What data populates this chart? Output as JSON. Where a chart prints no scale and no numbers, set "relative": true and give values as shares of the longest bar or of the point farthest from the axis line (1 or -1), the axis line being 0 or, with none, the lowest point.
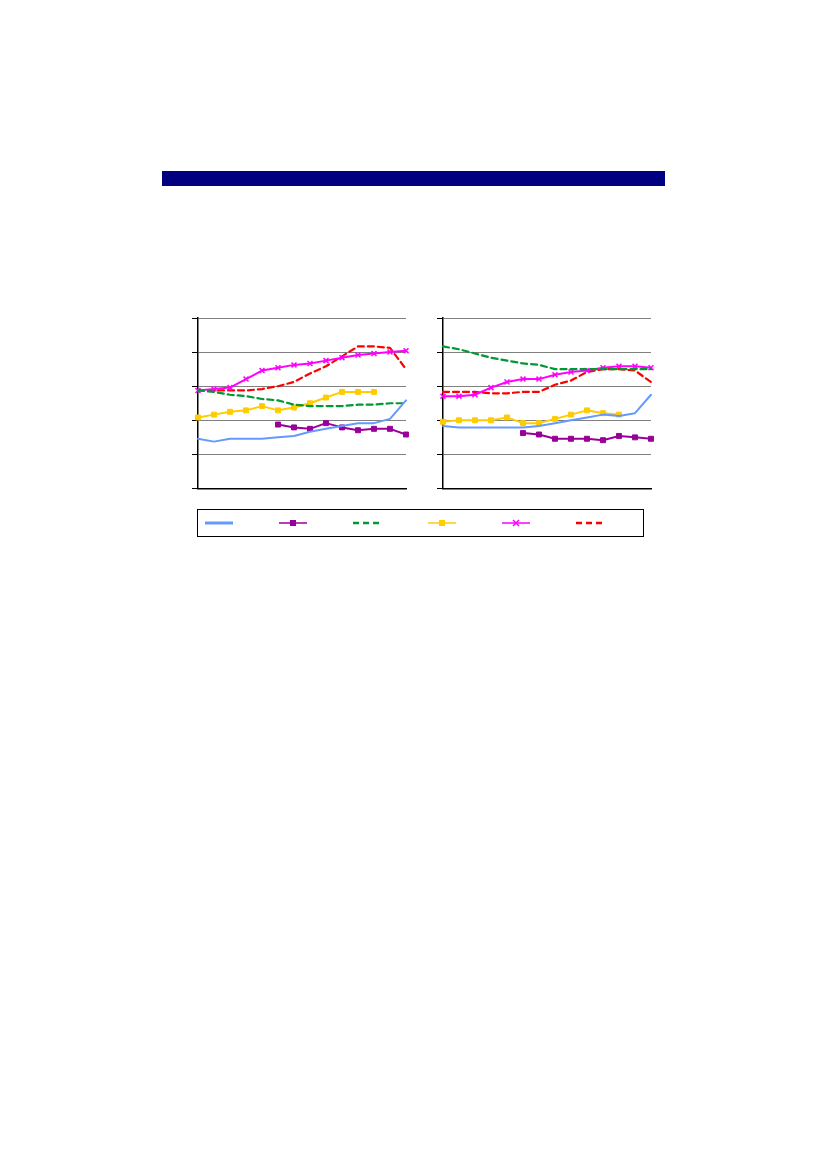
{
  "chart_data": [
    {
      "type": "line",
      "relative": true,
      "categories": [
        null,
        null,
        null,
        null,
        null,
        null,
        null,
        null,
        null,
        null,
        null,
        null,
        null,
        null
      ],
      "grid": "y",
      "tick_labels": false,
      "series": [
        {
          "color": "#6699ff",
          "marker": "none",
          "line_style": "solid",
          "values": [
            0.35,
            0.33,
            0.35,
            0.35,
            0.35,
            0.36,
            0.37,
            0.4,
            0.42,
            0.44,
            0.46,
            0.46,
            0.49,
            0.62
          ]
        },
        {
          "color": "#990099",
          "marker": "square",
          "line_style": "solid",
          "values": [
            null,
            null,
            null,
            null,
            null,
            0.45,
            0.43,
            0.42,
            0.46,
            0.43,
            0.41,
            0.42,
            0.42,
            0.38
          ]
        },
        {
          "color": "#009933",
          "marker": "none",
          "line_style": "dashed",
          "values": [
            0.69,
            0.68,
            0.66,
            0.65,
            0.63,
            0.62,
            0.59,
            0.58,
            0.58,
            0.58,
            0.59,
            0.59,
            0.6,
            0.6
          ]
        },
        {
          "color": "#ffcc00",
          "marker": "square",
          "line_style": "solid",
          "values": [
            0.5,
            0.52,
            0.54,
            0.55,
            0.58,
            0.55,
            0.57,
            0.6,
            0.64,
            0.68,
            0.68,
            0.68,
            null,
            null
          ]
        },
        {
          "color": "#ff00ff",
          "marker": "cross",
          "line_style": "solid",
          "values": [
            0.69,
            0.7,
            0.71,
            0.77,
            0.83,
            0.85,
            0.87,
            0.88,
            0.9,
            0.92,
            0.94,
            0.95,
            0.96,
            0.97
          ]
        },
        {
          "color": "#ff0000",
          "marker": "none",
          "line_style": "dashed",
          "values": [
            0.69,
            0.69,
            0.69,
            0.69,
            0.7,
            0.72,
            0.75,
            0.81,
            0.86,
            0.93,
            1.0,
            1.0,
            0.99,
            0.84
          ]
        }
      ]
    },
    {
      "type": "line",
      "relative": true,
      "categories": [
        null,
        null,
        null,
        null,
        null,
        null,
        null,
        null,
        null,
        null,
        null,
        null,
        null,
        null
      ],
      "grid": "y",
      "tick_labels": false,
      "series": [
        {
          "color": "#6699ff",
          "marker": "none",
          "line_style": "solid",
          "values": [
            0.44,
            0.43,
            0.43,
            0.43,
            0.43,
            0.43,
            0.44,
            0.46,
            0.48,
            0.5,
            0.52,
            0.51,
            0.53,
            0.66
          ]
        },
        {
          "color": "#990099",
          "marker": "square",
          "line_style": "solid",
          "values": [
            null,
            null,
            null,
            null,
            null,
            0.39,
            0.38,
            0.35,
            0.35,
            0.35,
            0.34,
            0.37,
            0.36,
            0.35
          ]
        },
        {
          "color": "#009933",
          "marker": "none",
          "line_style": "dashed",
          "values": [
            1.0,
            0.98,
            0.95,
            0.92,
            0.9,
            0.88,
            0.87,
            0.84,
            0.84,
            0.84,
            0.84,
            0.84,
            0.84,
            0.84
          ]
        },
        {
          "color": "#ffcc00",
          "marker": "square",
          "line_style": "solid",
          "values": [
            0.47,
            0.48,
            0.48,
            0.48,
            0.5,
            0.46,
            0.46,
            0.49,
            0.52,
            0.55,
            0.53,
            0.52,
            null,
            null
          ]
        },
        {
          "color": "#ff00ff",
          "marker": "cross",
          "line_style": "solid",
          "values": [
            0.65,
            0.65,
            0.66,
            0.71,
            0.75,
            0.77,
            0.77,
            0.8,
            0.82,
            0.83,
            0.85,
            0.86,
            0.86,
            0.85
          ]
        },
        {
          "color": "#ff0000",
          "marker": "none",
          "line_style": "dashed",
          "values": [
            0.68,
            0.68,
            0.68,
            0.67,
            0.67,
            0.68,
            0.68,
            0.73,
            0.76,
            0.82,
            0.84,
            0.84,
            0.83,
            0.75
          ]
        }
      ]
    }
  ]
}
